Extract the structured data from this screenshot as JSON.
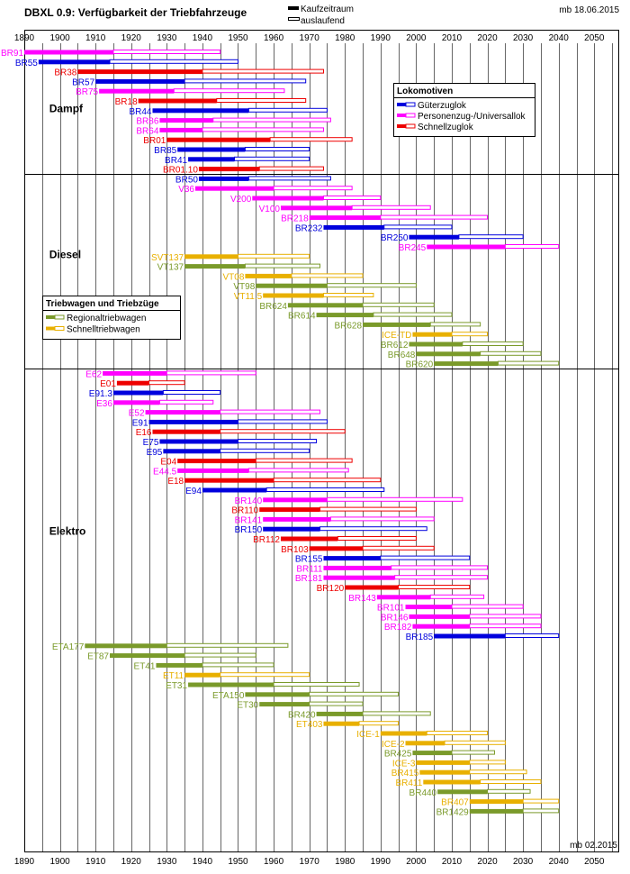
{
  "chart_data": {
    "type": "gantt",
    "title": "DBXL 0.9: Verfügbarkeit der Triebfahrzeuge",
    "date_top": "mb 18.06.2015",
    "date_bottom": "mb 02.2015",
    "xlim": [
      1890,
      2057
    ],
    "x_ticks": [
      1890,
      1900,
      1910,
      1920,
      1930,
      1940,
      1950,
      1960,
      1970,
      1980,
      1990,
      2000,
      2010,
      2020,
      2030,
      2040,
      2050
    ],
    "bar_legend": {
      "solid": "Kaufzeitraum",
      "outline": "auslaufend"
    },
    "colors": {
      "gueterzuglok": "#0000dd",
      "personenzug_universallok": "#ff00ff",
      "schnellzuglok": "#ee0000",
      "regionaltriebwagen": "#7a9a2a",
      "schnelltriebwagen": "#e8b000",
      "grid": "#000000"
    },
    "legend_lokomotiven": {
      "title": "Lokomotiven",
      "items": [
        {
          "label": "Güterzuglok",
          "category": "gueterzuglok"
        },
        {
          "label": "Personenzug-/Universallok",
          "category": "personenzug_universallok"
        },
        {
          "label": "Schnellzuglok",
          "category": "schnellzuglok"
        }
      ]
    },
    "legend_triebwagen": {
      "title": "Triebwagen und Triebzüge",
      "items": [
        {
          "label": "Regionaltriebwagen",
          "category": "regionaltriebwagen"
        },
        {
          "label": "Schnelltriebwagen",
          "category": "schnelltriebwagen"
        }
      ]
    },
    "groups": [
      {
        "name": "Dampf",
        "label_year": 1897,
        "label_row": 5.8
      },
      {
        "name": "Diesel",
        "label_year": 1897,
        "label_row": 20.8
      },
      {
        "name": "Elektro",
        "label_year": 1897,
        "label_row": 49.2
      }
    ],
    "separators_after_row": [
      12.5,
      32.5
    ],
    "series": [
      {
        "name": "BR91",
        "category": "personenzug_universallok",
        "start": 1890,
        "buy_end": 1915,
        "end": 1945
      },
      {
        "name": "BR55",
        "category": "gueterzuglok",
        "start": 1894,
        "buy_end": 1914,
        "end": 1950
      },
      {
        "name": "BR38",
        "category": "schnellzuglok",
        "start": 1905,
        "buy_end": 1940,
        "end": 1974
      },
      {
        "name": "BR57",
        "category": "gueterzuglok",
        "start": 1910,
        "buy_end": 1935,
        "end": 1969
      },
      {
        "name": "BR75",
        "category": "personenzug_universallok",
        "start": 1911,
        "buy_end": 1932,
        "end": 1963
      },
      {
        "name": "BR18",
        "category": "schnellzuglok",
        "start": 1922,
        "buy_end": 1944,
        "end": 1969
      },
      {
        "name": "BR44",
        "category": "gueterzuglok",
        "start": 1926,
        "buy_end": 1953,
        "end": 1975
      },
      {
        "name": "BR86",
        "category": "personenzug_universallok",
        "start": 1928,
        "buy_end": 1943,
        "end": 1976
      },
      {
        "name": "BR64",
        "category": "personenzug_universallok",
        "start": 1928,
        "buy_end": 1940,
        "end": 1974
      },
      {
        "name": "BR01",
        "category": "schnellzuglok",
        "start": 1930,
        "buy_end": 1959,
        "end": 1982
      },
      {
        "name": "BR85",
        "category": "gueterzuglok",
        "start": 1933,
        "buy_end": 1952,
        "end": 1970
      },
      {
        "name": "BR41",
        "category": "gueterzuglok",
        "start": 1936,
        "buy_end": 1949,
        "end": 1970
      },
      {
        "name": "BR01.10",
        "category": "schnellzuglok",
        "start": 1939,
        "buy_end": 1956,
        "end": 1974
      },
      {
        "name": "BR50",
        "category": "gueterzuglok",
        "start": 1939,
        "buy_end": 1953,
        "end": 1976
      },
      {
        "name": "V36",
        "category": "personenzug_universallok",
        "start": 1938,
        "buy_end": 1960,
        "end": 1982
      },
      {
        "name": "V200",
        "category": "personenzug_universallok",
        "start": 1954,
        "buy_end": 1974,
        "end": 1990
      },
      {
        "name": "V100",
        "category": "personenzug_universallok",
        "start": 1962,
        "buy_end": 1982,
        "end": 2004
      },
      {
        "name": "BR218",
        "category": "personenzug_universallok",
        "start": 1970,
        "buy_end": 1990,
        "end": 2020
      },
      {
        "name": "BR232",
        "category": "gueterzuglok",
        "start": 1974,
        "buy_end": 1991,
        "end": 2010
      },
      {
        "name": "BR250",
        "category": "gueterzuglok",
        "start": 1998,
        "buy_end": 2012,
        "end": 2030
      },
      {
        "name": "BR245",
        "category": "personenzug_universallok",
        "start": 2003,
        "buy_end": 2025,
        "end": 2040
      },
      {
        "name": "SVT137",
        "category": "schnelltriebwagen",
        "start": 1935,
        "buy_end": 1950,
        "end": 1970
      },
      {
        "name": "VT137",
        "category": "regionaltriebwagen",
        "start": 1935,
        "buy_end": 1952,
        "end": 1973
      },
      {
        "name": "VT08",
        "category": "schnelltriebwagen",
        "start": 1952,
        "buy_end": 1965,
        "end": 1985
      },
      {
        "name": "VT98",
        "category": "regionaltriebwagen",
        "start": 1955,
        "buy_end": 1975,
        "end": 2000
      },
      {
        "name": "VT11.5",
        "category": "schnelltriebwagen",
        "start": 1957,
        "buy_end": 1974,
        "end": 1988
      },
      {
        "name": "BR624",
        "category": "regionaltriebwagen",
        "start": 1964,
        "buy_end": 1985,
        "end": 2005
      },
      {
        "name": "BR614",
        "category": "regionaltriebwagen",
        "start": 1972,
        "buy_end": 1988,
        "end": 2010
      },
      {
        "name": "BR628",
        "category": "regionaltriebwagen",
        "start": 1985,
        "buy_end": 2004,
        "end": 2018
      },
      {
        "name": "ICE-TD",
        "category": "schnelltriebwagen",
        "start": 1999,
        "buy_end": 2010,
        "end": 2020
      },
      {
        "name": "BR612",
        "category": "regionaltriebwagen",
        "start": 1998,
        "buy_end": 2013,
        "end": 2030
      },
      {
        "name": "BR648",
        "category": "regionaltriebwagen",
        "start": 2000,
        "buy_end": 2018,
        "end": 2035
      },
      {
        "name": "BR620",
        "category": "regionaltriebwagen",
        "start": 2005,
        "buy_end": 2023,
        "end": 2040
      },
      {
        "name": "E62",
        "category": "personenzug_universallok",
        "start": 1912,
        "buy_end": 1930,
        "end": 1955
      },
      {
        "name": "E01",
        "category": "schnellzuglok",
        "start": 1916,
        "buy_end": 1925,
        "end": 1935
      },
      {
        "name": "E91.3",
        "category": "gueterzuglok",
        "start": 1915,
        "buy_end": 1929,
        "end": 1945
      },
      {
        "name": "E36",
        "category": "personenzug_universallok",
        "start": 1915,
        "buy_end": 1928,
        "end": 1943
      },
      {
        "name": "E52",
        "category": "personenzug_universallok",
        "start": 1924,
        "buy_end": 1945,
        "end": 1973
      },
      {
        "name": "E91",
        "category": "gueterzuglok",
        "start": 1925,
        "buy_end": 1950,
        "end": 1975
      },
      {
        "name": "E16",
        "category": "schnellzuglok",
        "start": 1926,
        "buy_end": 1945,
        "end": 1980
      },
      {
        "name": "E75",
        "category": "gueterzuglok",
        "start": 1928,
        "buy_end": 1950,
        "end": 1972
      },
      {
        "name": "E95",
        "category": "gueterzuglok",
        "start": 1929,
        "buy_end": 1945,
        "end": 1970
      },
      {
        "name": "E04",
        "category": "schnellzuglok",
        "start": 1933,
        "buy_end": 1955,
        "end": 1982
      },
      {
        "name": "E44.5",
        "category": "personenzug_universallok",
        "start": 1933,
        "buy_end": 1953,
        "end": 1981
      },
      {
        "name": "E18",
        "category": "schnellzuglok",
        "start": 1935,
        "buy_end": 1960,
        "end": 1990
      },
      {
        "name": "E94",
        "category": "gueterzuglok",
        "start": 1940,
        "buy_end": 1958,
        "end": 1991
      },
      {
        "name": "BR140",
        "category": "personenzug_universallok",
        "start": 1957,
        "buy_end": 1975,
        "end": 2013
      },
      {
        "name": "BR110",
        "category": "schnellzuglok",
        "start": 1956,
        "buy_end": 1973,
        "end": 2000
      },
      {
        "name": "BR141",
        "category": "personenzug_universallok",
        "start": 1957,
        "buy_end": 1976,
        "end": 2005
      },
      {
        "name": "BR150",
        "category": "gueterzuglok",
        "start": 1957,
        "buy_end": 1973,
        "end": 2003
      },
      {
        "name": "BR112",
        "category": "schnellzuglok",
        "start": 1962,
        "buy_end": 1978,
        "end": 2000
      },
      {
        "name": "BR103",
        "category": "schnellzuglok",
        "start": 1970,
        "buy_end": 1985,
        "end": 2005
      },
      {
        "name": "BR155",
        "category": "gueterzuglok",
        "start": 1974,
        "buy_end": 1990,
        "end": 2015
      },
      {
        "name": "BR111",
        "category": "personenzug_universallok",
        "start": 1974,
        "buy_end": 1993,
        "end": 2020
      },
      {
        "name": "BR181",
        "category": "personenzug_universallok",
        "start": 1974,
        "buy_end": 1994,
        "end": 2020
      },
      {
        "name": "BR120",
        "category": "schnellzuglok",
        "start": 1980,
        "buy_end": 1995,
        "end": 2015
      },
      {
        "name": "BR143",
        "category": "personenzug_universallok",
        "start": 1989,
        "buy_end": 2004,
        "end": 2019
      },
      {
        "name": "BR101",
        "category": "personenzug_universallok",
        "start": 1997,
        "buy_end": 2010,
        "end": 2030
      },
      {
        "name": "BR146",
        "category": "personenzug_universallok",
        "start": 1998,
        "buy_end": 2015,
        "end": 2035
      },
      {
        "name": "BR182",
        "category": "personenzug_universallok",
        "start": 1999,
        "buy_end": 2015,
        "end": 2035
      },
      {
        "name": "BR185",
        "category": "gueterzuglok",
        "start": 2005,
        "buy_end": 2025,
        "end": 2040
      },
      {
        "name": "ETA177",
        "category": "regionaltriebwagen",
        "start": 1907,
        "buy_end": 1930,
        "end": 1964
      },
      {
        "name": "ET87",
        "category": "regionaltriebwagen",
        "start": 1914,
        "buy_end": 1935,
        "end": 1955
      },
      {
        "name": "ET41",
        "category": "regionaltriebwagen",
        "start": 1927,
        "buy_end": 1940,
        "end": 1960
      },
      {
        "name": "ET11",
        "category": "schnelltriebwagen",
        "start": 1935,
        "buy_end": 1945,
        "end": 1970
      },
      {
        "name": "ET31",
        "category": "regionaltriebwagen",
        "start": 1936,
        "buy_end": 1960,
        "end": 1984
      },
      {
        "name": "ETA150",
        "category": "regionaltriebwagen",
        "start": 1952,
        "buy_end": 1970,
        "end": 1995
      },
      {
        "name": "ET30",
        "category": "regionaltriebwagen",
        "start": 1956,
        "buy_end": 1970,
        "end": 1985
      },
      {
        "name": "BR420",
        "category": "regionaltriebwagen",
        "start": 1972,
        "buy_end": 1985,
        "end": 2004
      },
      {
        "name": "ET403",
        "category": "schnelltriebwagen",
        "start": 1974,
        "buy_end": 1984,
        "end": 1995
      },
      {
        "name": "ICE-1",
        "category": "schnelltriebwagen",
        "start": 1990,
        "buy_end": 2003,
        "end": 2020
      },
      {
        "name": "ICE-2",
        "category": "schnelltriebwagen",
        "start": 1997,
        "buy_end": 2008,
        "end": 2025
      },
      {
        "name": "BR425",
        "category": "regionaltriebwagen",
        "start": 1999,
        "buy_end": 2010,
        "end": 2022
      },
      {
        "name": "ICE-3",
        "category": "schnelltriebwagen",
        "start": 2000,
        "buy_end": 2015,
        "end": 2025
      },
      {
        "name": "BR415",
        "category": "schnelltriebwagen",
        "start": 2001,
        "buy_end": 2015,
        "end": 2031
      },
      {
        "name": "BR411",
        "category": "schnelltriebwagen",
        "start": 2002,
        "buy_end": 2018,
        "end": 2035
      },
      {
        "name": "BR440",
        "category": "regionaltriebwagen",
        "start": 2006,
        "buy_end": 2020,
        "end": 2032
      },
      {
        "name": "BR407",
        "category": "schnelltriebwagen",
        "start": 2015,
        "buy_end": 2030,
        "end": 2040
      },
      {
        "name": "BR1429",
        "category": "regionaltriebwagen",
        "start": 2015,
        "buy_end": 2030,
        "end": 2040
      }
    ]
  }
}
